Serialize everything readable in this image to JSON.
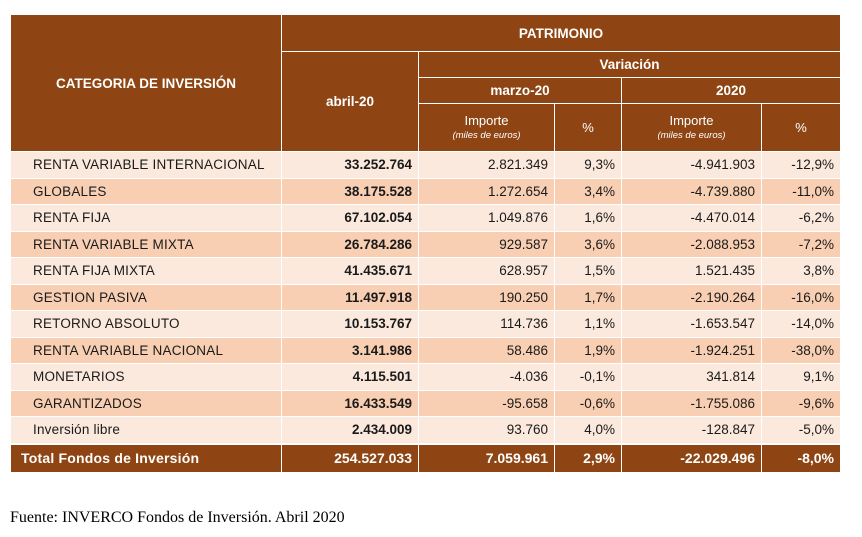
{
  "table": {
    "header": {
      "category": "CATEGORIA DE INVERSIÓN",
      "patrimonio": "PATRIMONIO",
      "month": "abril-20",
      "variacion": "Variación",
      "period1": "marzo-20",
      "period2": "2020",
      "importe": "Importe",
      "importe_unit": "(miles de euros)",
      "pct": "%"
    },
    "rows": [
      {
        "category": "RENTA VARIABLE INTERNACIONAL",
        "abril": "33.252.764",
        "marzo_importe": "2.821.349",
        "marzo_pct": "9,3%",
        "y2020_importe": "-4.941.903",
        "y2020_pct": "-12,9%"
      },
      {
        "category": "GLOBALES",
        "abril": "38.175.528",
        "marzo_importe": "1.272.654",
        "marzo_pct": "3,4%",
        "y2020_importe": "-4.739.880",
        "y2020_pct": "-11,0%"
      },
      {
        "category": "RENTA FIJA",
        "abril": "67.102.054",
        "marzo_importe": "1.049.876",
        "marzo_pct": "1,6%",
        "y2020_importe": "-4.470.014",
        "y2020_pct": "-6,2%"
      },
      {
        "category": "RENTA VARIABLE MIXTA",
        "abril": "26.784.286",
        "marzo_importe": "929.587",
        "marzo_pct": "3,6%",
        "y2020_importe": "-2.088.953",
        "y2020_pct": "-7,2%"
      },
      {
        "category": "RENTA FIJA MIXTA",
        "abril": "41.435.671",
        "marzo_importe": "628.957",
        "marzo_pct": "1,5%",
        "y2020_importe": "1.521.435",
        "y2020_pct": "3,8%"
      },
      {
        "category": "GESTION PASIVA",
        "abril": "11.497.918",
        "marzo_importe": "190.250",
        "marzo_pct": "1,7%",
        "y2020_importe": "-2.190.264",
        "y2020_pct": "-16,0%"
      },
      {
        "category": "RETORNO ABSOLUTO",
        "abril": "10.153.767",
        "marzo_importe": "114.736",
        "marzo_pct": "1,1%",
        "y2020_importe": "-1.653.547",
        "y2020_pct": "-14,0%"
      },
      {
        "category": "RENTA VARIABLE NACIONAL",
        "abril": "3.141.986",
        "marzo_importe": "58.486",
        "marzo_pct": "1,9%",
        "y2020_importe": "-1.924.251",
        "y2020_pct": "-38,0%"
      },
      {
        "category": "MONETARIOS",
        "abril": "4.115.501",
        "marzo_importe": "-4.036",
        "marzo_pct": "-0,1%",
        "y2020_importe": "341.814",
        "y2020_pct": "9,1%"
      },
      {
        "category": "GARANTIZADOS",
        "abril": "16.433.549",
        "marzo_importe": "-95.658",
        "marzo_pct": "-0,6%",
        "y2020_importe": "-1.755.086",
        "y2020_pct": "-9,6%"
      },
      {
        "category": "Inversión libre",
        "abril": "2.434.009",
        "marzo_importe": "93.760",
        "marzo_pct": "4,0%",
        "y2020_importe": "-128.847",
        "y2020_pct": "-5,0%"
      }
    ],
    "total": {
      "category": "Total Fondos de Inversión",
      "abril": "254.527.033",
      "marzo_importe": "7.059.961",
      "marzo_pct": "2,9%",
      "y2020_importe": "-22.029.496",
      "y2020_pct": "-8,0%"
    }
  },
  "colors": {
    "header_bg": "#8e4513",
    "row_light": "#fbe9dd",
    "row_dark": "#f8cfb3"
  },
  "source": "Fuente: INVERCO Fondos de Inversión. Abril 2020"
}
